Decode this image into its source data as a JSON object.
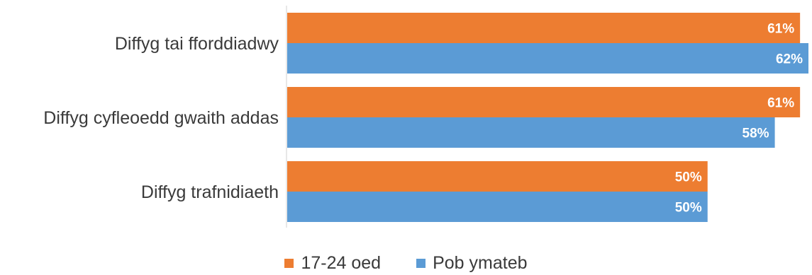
{
  "chart_data": {
    "type": "bar",
    "orientation": "horizontal",
    "categories": [
      "Diffyg tai fforddiadwy",
      "Diffyg cyfleoedd gwaith addas",
      "Diffyg trafnidiaeth"
    ],
    "series": [
      {
        "name": "17-24 oed",
        "values": [
          61,
          61,
          50
        ],
        "labels": [
          "61%",
          "61%",
          "50%"
        ],
        "color": "#ED7D31"
      },
      {
        "name": "Pob ymateb",
        "values": [
          62,
          58,
          50
        ],
        "labels": [
          "62%",
          "58%",
          "50%"
        ],
        "color": "#5B9BD5"
      }
    ],
    "xlim": [
      0,
      62
    ],
    "grid": false,
    "legend_position": "bottom"
  }
}
